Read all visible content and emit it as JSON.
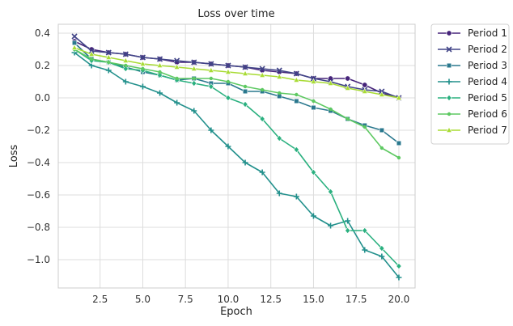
{
  "chart_data": {
    "type": "line",
    "title": "Loss over time",
    "xlabel": "Epoch",
    "ylabel": "Loss",
    "xlim": [
      0.05,
      20.95
    ],
    "ylim": [
      -1.175,
      0.455
    ],
    "xticks": [
      2.5,
      5.0,
      7.5,
      10.0,
      12.5,
      15.0,
      17.5,
      20.0
    ],
    "xtick_labels": [
      "2.5",
      "5.0",
      "7.5",
      "10.0",
      "12.5",
      "15.0",
      "17.5",
      "20.0"
    ],
    "yticks": [
      -1.0,
      -0.8,
      -0.6,
      -0.4,
      -0.2,
      0.0,
      0.2,
      0.4
    ],
    "ytick_labels": [
      "−1.0",
      "−0.8",
      "−0.6",
      "−0.4",
      "−0.2",
      "0.0",
      "0.2",
      "0.4"
    ],
    "grid": true,
    "legend_position": "outside-top-right",
    "x": [
      1,
      2,
      3,
      4,
      5,
      6,
      7,
      8,
      9,
      10,
      11,
      12,
      13,
      14,
      15,
      16,
      17,
      18,
      19,
      20
    ],
    "series": [
      {
        "name": "Period 1",
        "color": "#46247a",
        "marker": "circle",
        "values": [
          0.35,
          0.3,
          0.28,
          0.27,
          0.25,
          0.24,
          0.22,
          0.22,
          0.21,
          0.2,
          0.19,
          0.17,
          0.16,
          0.15,
          0.12,
          0.12,
          0.12,
          0.08,
          0.03,
          0.0
        ]
      },
      {
        "name": "Period 2",
        "color": "#414487",
        "marker": "x",
        "values": [
          0.38,
          0.29,
          0.28,
          0.27,
          0.25,
          0.24,
          0.23,
          0.22,
          0.21,
          0.2,
          0.19,
          0.18,
          0.17,
          0.15,
          0.12,
          0.1,
          0.07,
          0.05,
          0.04,
          0.0
        ]
      },
      {
        "name": "Period 3",
        "color": "#2a788e",
        "marker": "square",
        "values": [
          0.34,
          0.24,
          0.22,
          0.19,
          0.16,
          0.14,
          0.11,
          0.12,
          0.09,
          0.09,
          0.04,
          0.04,
          0.01,
          -0.02,
          -0.06,
          -0.08,
          -0.13,
          -0.17,
          -0.2,
          -0.28
        ]
      },
      {
        "name": "Period 4",
        "color": "#22908c",
        "marker": "plus",
        "values": [
          0.28,
          0.2,
          0.17,
          0.1,
          0.07,
          0.03,
          -0.03,
          -0.08,
          -0.2,
          -0.3,
          -0.4,
          -0.46,
          -0.59,
          -0.61,
          -0.73,
          -0.79,
          -0.76,
          -0.94,
          -0.98,
          -1.11
        ]
      },
      {
        "name": "Period 5",
        "color": "#2ab07f",
        "marker": "diamond",
        "values": [
          0.3,
          0.23,
          0.22,
          0.18,
          0.17,
          0.14,
          0.11,
          0.09,
          0.07,
          0.0,
          -0.04,
          -0.13,
          -0.25,
          -0.32,
          -0.46,
          -0.58,
          -0.82,
          -0.82,
          -0.93,
          -1.04
        ]
      },
      {
        "name": "Period 6",
        "color": "#5ec962",
        "marker": "point",
        "values": [
          0.3,
          0.24,
          0.22,
          0.2,
          0.18,
          0.16,
          0.12,
          0.12,
          0.12,
          0.1,
          0.07,
          0.05,
          0.03,
          0.02,
          -0.02,
          -0.07,
          -0.13,
          -0.18,
          -0.31,
          -0.37
        ]
      },
      {
        "name": "Period 7",
        "color": "#a8db34",
        "marker": "triangle",
        "values": [
          0.31,
          0.27,
          0.25,
          0.23,
          0.21,
          0.2,
          0.19,
          0.18,
          0.17,
          0.16,
          0.15,
          0.14,
          0.13,
          0.11,
          0.1,
          0.09,
          0.06,
          0.04,
          0.02,
          0.0
        ]
      }
    ]
  }
}
